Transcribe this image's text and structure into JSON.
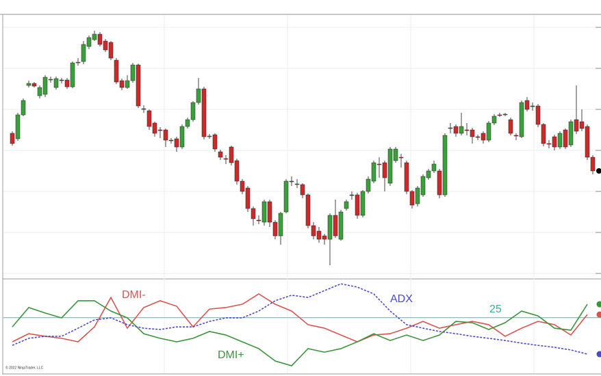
{
  "chart_data": [
    {
      "type": "candlestick",
      "up_color": "#3aa03a",
      "down_color": "#cc2a2a",
      "ylim": [
        5,
        390
      ],
      "yticks": [
        10,
        70,
        130,
        190,
        250,
        310,
        370
      ],
      "grid": true,
      "last_marker_color": "#000000",
      "ohlc": [
        [
          215,
          218,
          197,
          200
        ],
        [
          207,
          245,
          204,
          242
        ],
        [
          242,
          266,
          240,
          263
        ],
        [
          285,
          292,
          282,
          288
        ],
        [
          288,
          290,
          282,
          284
        ],
        [
          270,
          285,
          266,
          282
        ],
        [
          272,
          300,
          268,
          297
        ],
        [
          293,
          298,
          289,
          294
        ],
        [
          282,
          298,
          279,
          295
        ],
        [
          293,
          296,
          288,
          292
        ],
        [
          293,
          296,
          280,
          283
        ],
        [
          283,
          320,
          281,
          318
        ],
        [
          318,
          325,
          314,
          319
        ],
        [
          320,
          350,
          316,
          345
        ],
        [
          342,
          358,
          338,
          355
        ],
        [
          352,
          365,
          350,
          360
        ],
        [
          360,
          363,
          342,
          345
        ],
        [
          350,
          353,
          334,
          337
        ],
        [
          348,
          350,
          322,
          325
        ],
        [
          322,
          325,
          287,
          290
        ],
        [
          292,
          295,
          278,
          282
        ],
        [
          282,
          300,
          280,
          292
        ],
        [
          292,
          318,
          289,
          315
        ],
        [
          315,
          317,
          252,
          255
        ],
        [
          251,
          256,
          245,
          250
        ],
        [
          248,
          250,
          220,
          225
        ],
        [
          230,
          232,
          210,
          215
        ],
        [
          220,
          224,
          208,
          219
        ],
        [
          220,
          222,
          195,
          205
        ],
        [
          205,
          208,
          200,
          204
        ],
        [
          207,
          210,
          188,
          195
        ],
        [
          195,
          228,
          192,
          225
        ],
        [
          225,
          238,
          222,
          235
        ],
        [
          235,
          262,
          232,
          260
        ],
        [
          260,
          296,
          257,
          280
        ],
        [
          280,
          283,
          206,
          210
        ],
        [
          210,
          214,
          207,
          211
        ],
        [
          213,
          215,
          188,
          192
        ],
        [
          188,
          191,
          176,
          180
        ],
        [
          178,
          183,
          170,
          177
        ],
        [
          195,
          197,
          168,
          172
        ],
        [
          175,
          178,
          140,
          145
        ],
        [
          145,
          148,
          126,
          130
        ],
        [
          135,
          138,
          100,
          105
        ],
        [
          105,
          108,
          80,
          90
        ],
        [
          88,
          95,
          82,
          87
        ],
        [
          85,
          118,
          80,
          115
        ],
        [
          115,
          118,
          78,
          85
        ],
        [
          85,
          88,
          60,
          65
        ],
        [
          65,
          100,
          52,
          98
        ],
        [
          100,
          148,
          98,
          145
        ],
        [
          145,
          152,
          138,
          144
        ],
        [
          140,
          148,
          135,
          141
        ],
        [
          140,
          142,
          120,
          125
        ],
        [
          125,
          127,
          76,
          80
        ],
        [
          80,
          85,
          60,
          65
        ],
        [
          72,
          78,
          55,
          60
        ],
        [
          65,
          68,
          52,
          60
        ],
        [
          60,
          98,
          22,
          95
        ],
        [
          95,
          118,
          62,
          65
        ],
        [
          60,
          103,
          58,
          100
        ],
        [
          105,
          118,
          102,
          115
        ],
        [
          125,
          130,
          118,
          124
        ],
        [
          125,
          128,
          90,
          95
        ],
        [
          95,
          132,
          92,
          130
        ],
        [
          130,
          152,
          127,
          148
        ],
        [
          145,
          175,
          142,
          172
        ],
        [
          170,
          180,
          150,
          169
        ],
        [
          172,
          175,
          130,
          150
        ],
        [
          142,
          195,
          138,
          192
        ],
        [
          175,
          195,
          172,
          192
        ],
        [
          180,
          185,
          165,
          179
        ],
        [
          172,
          175,
          126,
          130
        ],
        [
          130,
          132,
          105,
          110
        ],
        [
          112,
          138,
          108,
          135
        ],
        [
          125,
          155,
          122,
          152
        ],
        [
          150,
          163,
          147,
          160
        ],
        [
          160,
          175,
          157,
          170
        ],
        [
          160,
          163,
          120,
          125
        ],
        [
          125,
          215,
          122,
          212
        ],
        [
          222,
          230,
          215,
          223
        ],
        [
          225,
          228,
          210,
          215
        ],
        [
          215,
          245,
          212,
          225
        ],
        [
          220,
          230,
          212,
          219
        ],
        [
          220,
          223,
          200,
          210
        ],
        [
          210,
          213,
          205,
          209
        ],
        [
          215,
          218,
          200,
          205
        ],
        [
          205,
          233,
          202,
          230
        ],
        [
          230,
          243,
          227,
          240
        ],
        [
          242,
          245,
          239,
          241
        ],
        [
          242,
          245,
          240,
          243
        ],
        [
          235,
          238,
          212,
          215
        ],
        [
          212,
          215,
          205,
          211
        ],
        [
          210,
          263,
          208,
          260
        ],
        [
          263,
          268,
          247,
          250
        ],
        [
          255,
          260,
          248,
          254
        ],
        [
          255,
          258,
          224,
          228
        ],
        [
          228,
          230,
          196,
          200
        ],
        [
          200,
          205,
          193,
          199
        ],
        [
          210,
          213,
          190,
          195
        ],
        [
          195,
          218,
          192,
          215
        ],
        [
          220,
          222,
          192,
          195
        ],
        [
          198,
          235,
          195,
          232
        ],
        [
          235,
          285,
          214,
          218
        ],
        [
          232,
          250,
          218,
          222
        ],
        [
          225,
          228,
          176,
          180
        ],
        [
          180,
          183,
          155,
          160
        ]
      ]
    },
    {
      "type": "line",
      "ylim": [
        0,
        42
      ],
      "xlim": [
        1,
        107
      ],
      "level": 25,
      "level_color": "#8fb8b8",
      "x": [
        1,
        4,
        7,
        10,
        13,
        16,
        19,
        22,
        25,
        28,
        31,
        34,
        37,
        40,
        43,
        46,
        49,
        52,
        55,
        58,
        61,
        64,
        67,
        70,
        73,
        76,
        79,
        82,
        85,
        88,
        91,
        94,
        97,
        100,
        103,
        106
      ],
      "series": [
        {
          "name": "DMI-",
          "color": "#d9534f",
          "style": "solid",
          "values": [
            14.0,
            17.7,
            16.5,
            15.6,
            14.0,
            20.8,
            34.2,
            20.2,
            29.6,
            32.7,
            30.2,
            20.8,
            28.9,
            29.6,
            31.1,
            35.8,
            31.1,
            28.0,
            21.8,
            20.2,
            17.1,
            14.0,
            17.1,
            17.7,
            20.2,
            23.3,
            20.2,
            21.8,
            23.3,
            21.8,
            16.5,
            20.2,
            23.3,
            21.8,
            17.1,
            26.4
          ]
        },
        {
          "name": "DMI+",
          "color": "#3a943a",
          "style": "solid",
          "values": [
            20.8,
            29.6,
            27.1,
            24.9,
            32.7,
            32.7,
            28.0,
            24.9,
            17.7,
            15.6,
            14.0,
            15.6,
            18.7,
            17.1,
            14.0,
            10.9,
            5.3,
            3.1,
            10.9,
            9.3,
            10.9,
            14.0,
            17.7,
            14.6,
            17.1,
            14.6,
            17.1,
            23.3,
            22.7,
            19.6,
            22.7,
            28.0,
            25.8,
            20.2,
            19.3,
            31.1
          ]
        },
        {
          "name": "ADX",
          "color": "#4a4ac8",
          "style": "dashed",
          "values": [
            12.4,
            15.6,
            16.5,
            16.5,
            20.2,
            24.0,
            24.9,
            21.8,
            20.2,
            19.6,
            20.8,
            20.8,
            23.3,
            24.9,
            24.9,
            28.0,
            32.7,
            35.2,
            34.2,
            37.3,
            40.4,
            38.9,
            35.8,
            28.0,
            21.8,
            20.2,
            18.7,
            17.7,
            16.5,
            15.6,
            14.6,
            13.4,
            12.4,
            11.5,
            10.3,
            8.4
          ]
        }
      ]
    }
  ],
  "copyright": "© 2022 NinjaTrader, LLC"
}
